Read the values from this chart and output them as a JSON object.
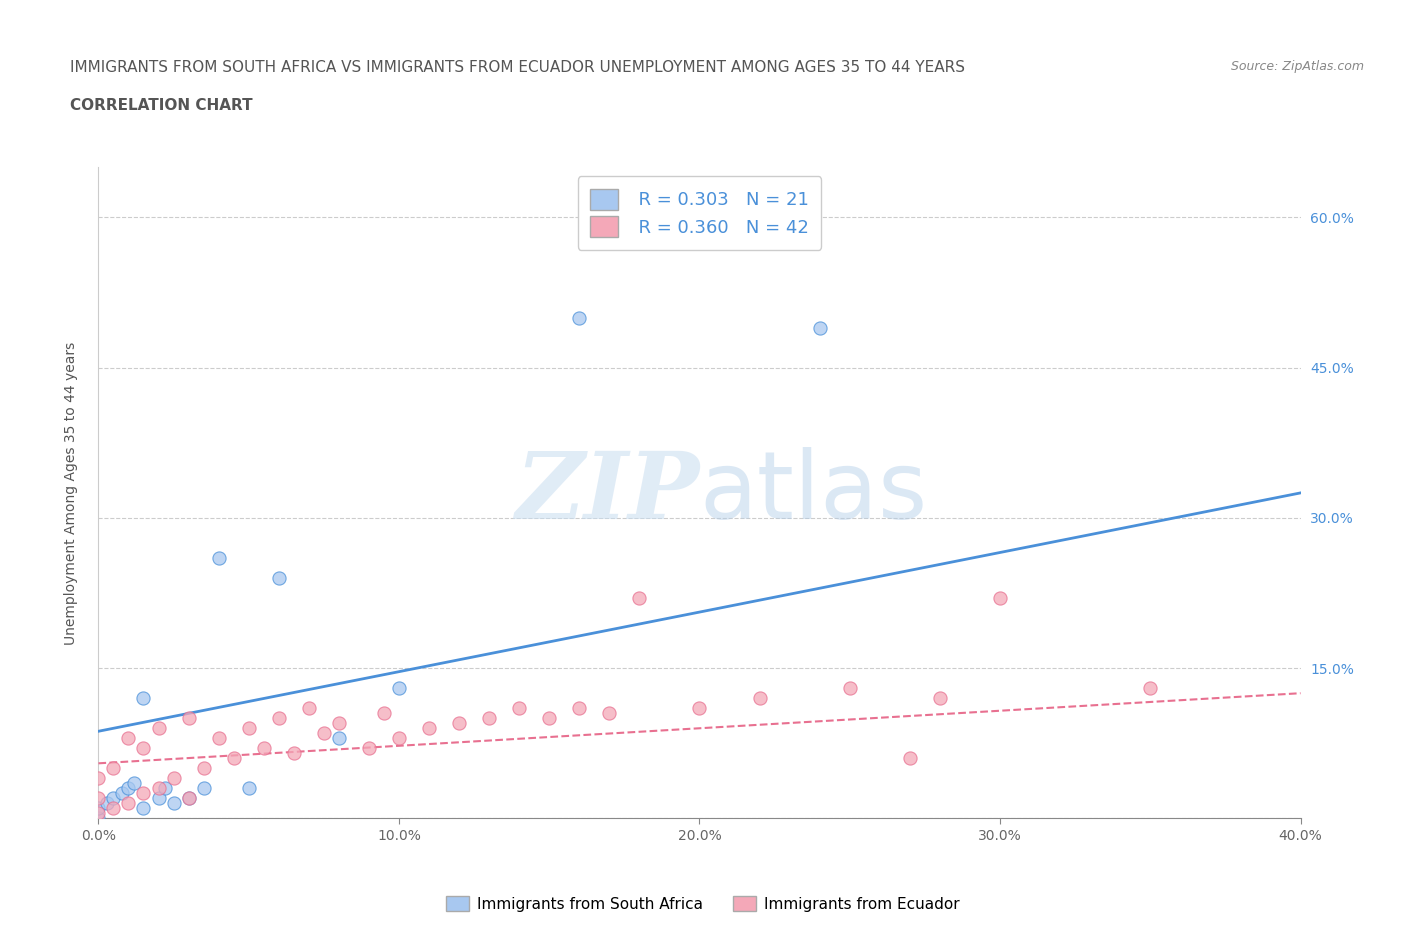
{
  "title_line1": "IMMIGRANTS FROM SOUTH AFRICA VS IMMIGRANTS FROM ECUADOR UNEMPLOYMENT AMONG AGES 35 TO 44 YEARS",
  "title_line2": "CORRELATION CHART",
  "source_text": "Source: ZipAtlas.com",
  "ylabel": "Unemployment Among Ages 35 to 44 years",
  "xlim": [
    0.0,
    40.0
  ],
  "ylim": [
    0.0,
    65.0
  ],
  "x_ticks": [
    0.0,
    10.0,
    20.0,
    30.0,
    40.0
  ],
  "x_tick_labels": [
    "0.0%",
    "10.0%",
    "20.0%",
    "30.0%",
    "40.0%"
  ],
  "y_ticks": [
    0.0,
    15.0,
    30.0,
    45.0,
    60.0
  ],
  "y_tick_labels": [
    "",
    "",
    "",
    "",
    ""
  ],
  "right_y_tick_labels": [
    "",
    "15.0%",
    "30.0%",
    "45.0%",
    "60.0%"
  ],
  "watermark_zip": "ZIP",
  "watermark_atlas": "atlas",
  "legend_r1": "R = 0.303",
  "legend_n1": "N = 21",
  "legend_r2": "R = 0.360",
  "legend_n2": "N = 42",
  "color_sa": "#a8c8f0",
  "color_ec": "#f4a8b8",
  "line_color_sa": "#4a90d9",
  "line_color_ec": "#e87090",
  "grid_color": "#cccccc",
  "title_color": "#555555",
  "legend_text_color": "#4a90d9",
  "sa_scatter_x": [
    0.0,
    0.0,
    0.3,
    0.5,
    0.8,
    1.0,
    1.2,
    1.5,
    1.5,
    2.0,
    2.2,
    2.5,
    3.0,
    3.5,
    4.0,
    5.0,
    6.0,
    8.0,
    10.0,
    16.0,
    24.0
  ],
  "sa_scatter_y": [
    0.0,
    1.0,
    1.5,
    2.0,
    2.5,
    3.0,
    3.5,
    1.0,
    12.0,
    2.0,
    3.0,
    1.5,
    2.0,
    3.0,
    26.0,
    3.0,
    24.0,
    8.0,
    13.0,
    50.0,
    49.0
  ],
  "ec_scatter_x": [
    0.0,
    0.0,
    0.0,
    0.5,
    0.5,
    1.0,
    1.0,
    1.5,
    1.5,
    2.0,
    2.0,
    2.5,
    3.0,
    3.0,
    3.5,
    4.0,
    4.5,
    5.0,
    5.5,
    6.0,
    6.5,
    7.0,
    7.5,
    8.0,
    9.0,
    9.5,
    10.0,
    11.0,
    12.0,
    13.0,
    14.0,
    15.0,
    16.0,
    17.0,
    18.0,
    20.0,
    22.0,
    25.0,
    27.0,
    28.0,
    30.0,
    35.0
  ],
  "ec_scatter_y": [
    0.5,
    2.0,
    4.0,
    1.0,
    5.0,
    1.5,
    8.0,
    2.5,
    7.0,
    3.0,
    9.0,
    4.0,
    2.0,
    10.0,
    5.0,
    8.0,
    6.0,
    9.0,
    7.0,
    10.0,
    6.5,
    11.0,
    8.5,
    9.5,
    7.0,
    10.5,
    8.0,
    9.0,
    9.5,
    10.0,
    11.0,
    10.0,
    11.0,
    10.5,
    22.0,
    11.0,
    12.0,
    13.0,
    6.0,
    12.0,
    22.0,
    13.0
  ],
  "sa_trend_x": [
    0.0,
    40.0
  ],
  "sa_trend_y": [
    8.7,
    32.5
  ],
  "ec_trend_x": [
    0.0,
    40.0
  ],
  "ec_trend_y": [
    5.5,
    12.5
  ],
  "label_sa": "Immigrants from South Africa",
  "label_ec": "Immigrants from Ecuador"
}
